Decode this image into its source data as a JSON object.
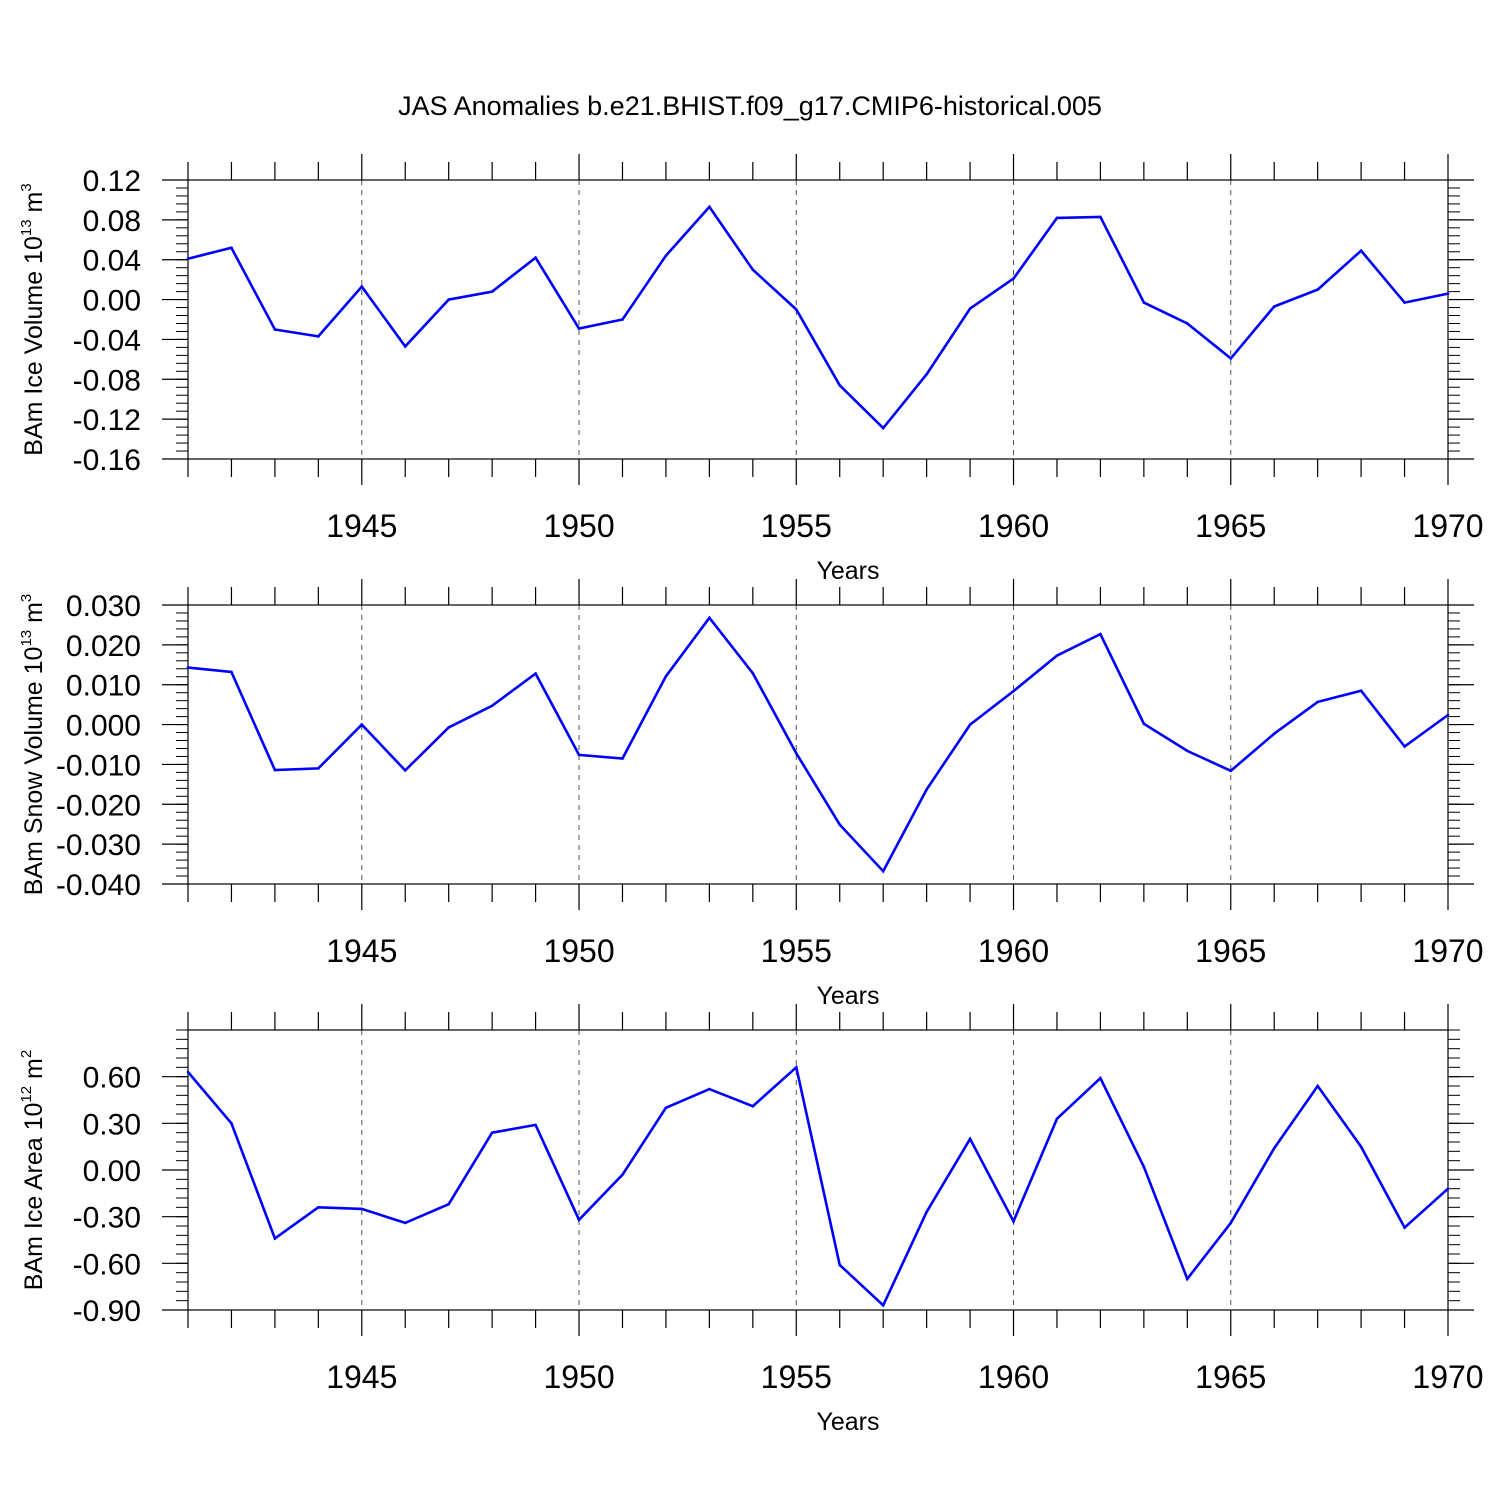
{
  "figure_title": "JAS Anomalies b.e21.BHIST.f09_g17.CMIP6-historical.005",
  "colors": {
    "line": "#0000ff",
    "axes": "#000000",
    "grid": "#555555"
  },
  "chart_data": [
    {
      "type": "line",
      "title": "",
      "xlabel": "Years",
      "ylabel": {
        "base": "BAm Ice Volume 10",
        "exp": "13",
        "unit": " m",
        "unit_exp": "3"
      },
      "xlim": [
        1941,
        1970
      ],
      "ylim": [
        -0.16,
        0.12
      ],
      "x_ticks": [
        1945,
        1950,
        1955,
        1960,
        1965,
        1970
      ],
      "y_ticks": [
        -0.16,
        -0.12,
        -0.08,
        -0.04,
        0.0,
        0.04,
        0.08,
        0.12
      ],
      "y_tick_labels": [
        "-0.16",
        "-0.12",
        "-0.08",
        "-0.04",
        "0.00",
        "0.04",
        "0.08",
        "0.12"
      ],
      "grid": "vertical dashed at major x ticks",
      "series": [
        {
          "x": [
            1941,
            1942,
            1943,
            1944,
            1945,
            1946,
            1947,
            1948,
            1949,
            1950,
            1951,
            1952,
            1953,
            1954,
            1955,
            1956,
            1957,
            1958,
            1959,
            1960,
            1961,
            1962,
            1963,
            1964,
            1965,
            1966,
            1967,
            1968,
            1969,
            1970
          ],
          "values": [
            0.041,
            0.052,
            -0.03,
            -0.037,
            0.013,
            -0.047,
            -0.0,
            0.008,
            0.042,
            -0.029,
            -0.02,
            0.044,
            0.093,
            0.03,
            -0.01,
            -0.086,
            -0.129,
            -0.075,
            -0.009,
            0.021,
            0.082,
            0.083,
            -0.003,
            -0.024,
            -0.059,
            -0.007,
            0.01,
            0.049,
            -0.003,
            0.006
          ]
        }
      ]
    },
    {
      "type": "line",
      "title": "",
      "xlabel": "Years",
      "ylabel": {
        "base": "BAm Snow Volume 10",
        "exp": "13",
        "unit": " m",
        "unit_exp": "3"
      },
      "xlim": [
        1941,
        1970
      ],
      "ylim": [
        -0.04,
        0.03
      ],
      "x_ticks": [
        1945,
        1950,
        1955,
        1960,
        1965,
        1970
      ],
      "y_ticks": [
        -0.04,
        -0.03,
        -0.02,
        -0.01,
        0.0,
        0.01,
        0.02,
        0.03
      ],
      "y_tick_labels": [
        "-0.040",
        "-0.030",
        "-0.020",
        "-0.010",
        "0.000",
        "0.010",
        "0.020",
        "0.030"
      ],
      "grid": "vertical dashed at major x ticks",
      "series": [
        {
          "x": [
            1941,
            1942,
            1943,
            1944,
            1945,
            1946,
            1947,
            1948,
            1949,
            1950,
            1951,
            1952,
            1953,
            1954,
            1955,
            1956,
            1957,
            1958,
            1959,
            1960,
            1961,
            1962,
            1963,
            1964,
            1965,
            1966,
            1967,
            1968,
            1969,
            1970
          ],
          "values": [
            0.0143,
            0.0132,
            -0.0114,
            -0.011,
            0.0,
            -0.0115,
            -0.0007,
            0.0047,
            0.0128,
            -0.0076,
            -0.0085,
            0.0121,
            0.0268,
            0.0129,
            -0.0072,
            -0.0251,
            -0.0368,
            -0.0163,
            0.0,
            0.0084,
            0.0173,
            0.0227,
            0.0002,
            -0.0066,
            -0.0116,
            -0.0023,
            0.0057,
            0.0085,
            -0.0055,
            0.0024
          ]
        }
      ]
    },
    {
      "type": "line",
      "title": "",
      "xlabel": "Years",
      "ylabel": {
        "base": "BAm Ice Area 10",
        "exp": "12",
        "unit": " m",
        "unit_exp": "2"
      },
      "xlim": [
        1941,
        1970
      ],
      "ylim": [
        -0.9,
        0.9
      ],
      "x_ticks": [
        1945,
        1950,
        1955,
        1960,
        1965,
        1970
      ],
      "y_ticks": [
        -0.9,
        -0.6,
        -0.3,
        0.0,
        0.3,
        0.6
      ],
      "y_tick_labels": [
        "-0.90",
        "-0.60",
        "-0.30",
        "0.00",
        "0.30",
        "0.60"
      ],
      "grid": "vertical dashed at major x ticks",
      "series": [
        {
          "x": [
            1941,
            1942,
            1943,
            1944,
            1945,
            1946,
            1947,
            1948,
            1949,
            1950,
            1951,
            1952,
            1953,
            1954,
            1955,
            1956,
            1957,
            1958,
            1959,
            1960,
            1961,
            1962,
            1963,
            1964,
            1965,
            1966,
            1967,
            1968,
            1969,
            1970
          ],
          "values": [
            0.63,
            0.3,
            -0.44,
            -0.24,
            -0.25,
            -0.34,
            -0.22,
            0.24,
            0.29,
            -0.32,
            -0.03,
            0.4,
            0.52,
            0.41,
            0.66,
            -0.61,
            -0.87,
            -0.27,
            0.2,
            -0.33,
            0.33,
            0.59,
            0.02,
            -0.7,
            -0.34,
            0.14,
            0.54,
            0.15,
            -0.37,
            -0.12
          ]
        }
      ]
    }
  ]
}
